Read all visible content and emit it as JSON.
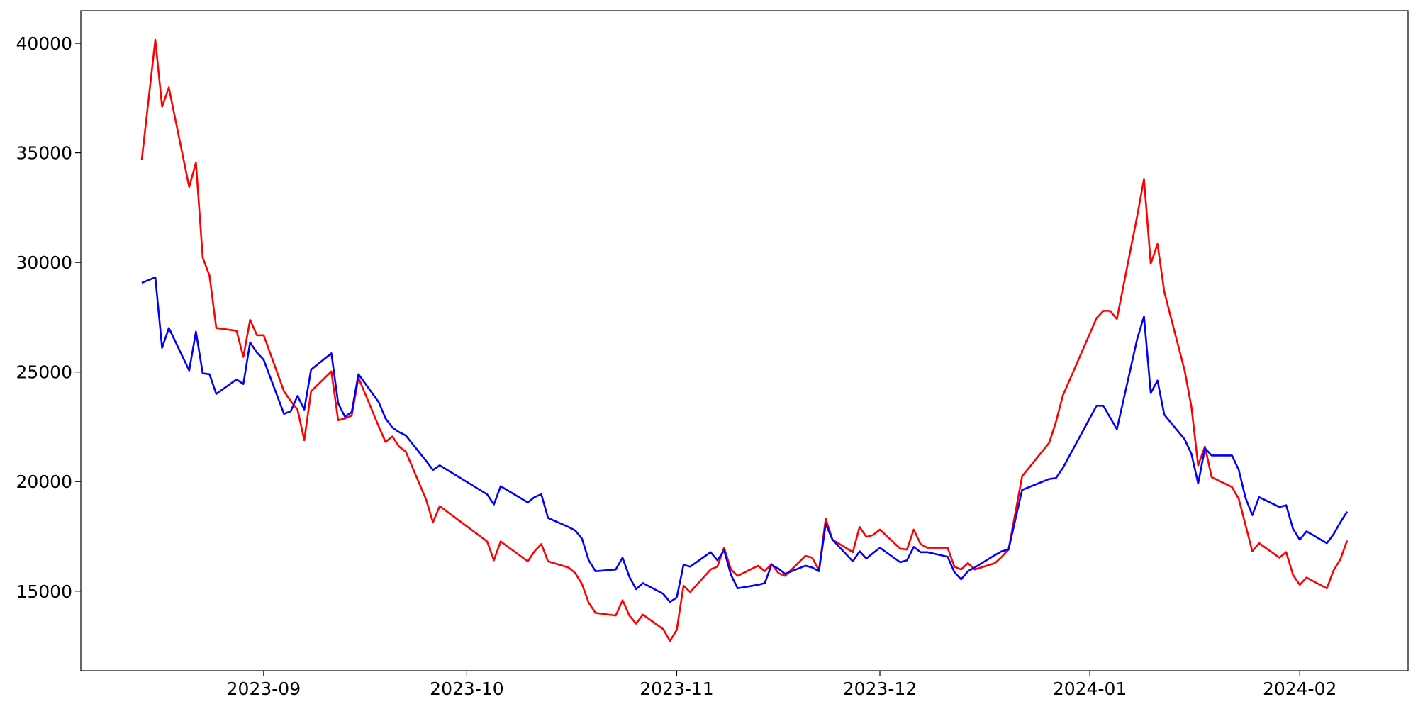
{
  "chart_data": {
    "type": "line",
    "x": [
      19583,
      19585,
      19586,
      19587,
      19590,
      19591,
      19592,
      19593,
      19594,
      19597,
      19598,
      19599,
      19600,
      19601,
      19604,
      19605,
      19606,
      19607,
      19608,
      19611,
      19612,
      19613,
      19614,
      19615,
      19618,
      19619,
      19620,
      19621,
      19622,
      19625,
      19626,
      19627,
      19634,
      19635,
      19636,
      19640,
      19641,
      19642,
      19643,
      19646,
      19647,
      19648,
      19649,
      19650,
      19653,
      19654,
      19655,
      19656,
      19657,
      19660,
      19661,
      19662,
      19663,
      19664,
      19667,
      19668,
      19669,
      19670,
      19671,
      19674,
      19675,
      19676,
      19677,
      19678,
      19681,
      19682,
      19683,
      19684,
      19685,
      19688,
      19689,
      19690,
      19691,
      19692,
      19695,
      19696,
      19697,
      19698,
      19699,
      19702,
      19703,
      19704,
      19705,
      19706,
      19709,
      19710,
      19711,
      19713,
      19717,
      19718,
      19719,
      19724,
      19725,
      19726,
      19727,
      19730,
      19731,
      19732,
      19733,
      19734,
      19737,
      19738,
      19739,
      19740,
      19741,
      19744,
      19745,
      19746,
      19747,
      19748,
      19751,
      19752,
      19753,
      19754,
      19755,
      19758,
      19759,
      19760,
      19761
    ],
    "series": [
      {
        "color": "red",
        "values": [
          34680,
          40165,
          37110,
          37980,
          33440,
          34555,
          30220,
          29400,
          27010,
          26880,
          25690,
          27380,
          26680,
          26680,
          24120,
          23670,
          23290,
          21890,
          24120,
          25030,
          22800,
          22880,
          23010,
          24740,
          22510,
          21810,
          22060,
          21600,
          21360,
          19170,
          18140,
          18880,
          17270,
          16410,
          17270,
          16360,
          16820,
          17150,
          16360,
          16080,
          15830,
          15330,
          14470,
          14010,
          13890,
          14590,
          13890,
          13520,
          13930,
          13270,
          12730,
          13230,
          15250,
          14960,
          15990,
          16120,
          16980,
          15990,
          15700,
          16160,
          15910,
          16240,
          15830,
          15700,
          16610,
          16530,
          15950,
          18300,
          17350,
          16780,
          17930,
          17480,
          17560,
          17810,
          16940,
          16900,
          17810,
          17150,
          16980,
          16980,
          16120,
          15990,
          16280,
          15990,
          16280,
          16570,
          16900,
          20240,
          21770,
          22720,
          23910,
          27460,
          27790,
          27790,
          27420,
          32120,
          33810,
          29940,
          30840,
          28660,
          25070,
          23420,
          20740,
          21600,
          20200,
          19750,
          19210,
          18010,
          16820,
          17190,
          16530,
          16780,
          15750,
          15290,
          15620,
          15130,
          15950,
          16450,
          17310
        ]
      },
      {
        "color": "blue",
        "values": [
          29070,
          29320,
          26100,
          27010,
          25070,
          26840,
          24940,
          24900,
          24000,
          24660,
          24450,
          26350,
          25890,
          25560,
          23090,
          23210,
          23910,
          23290,
          25110,
          25850,
          23580,
          22960,
          23170,
          24900,
          23620,
          22880,
          22470,
          22260,
          22100,
          20940,
          20530,
          20740,
          19420,
          18960,
          19790,
          19050,
          19290,
          19420,
          18340,
          17930,
          17770,
          17400,
          16410,
          15910,
          15990,
          16530,
          15660,
          15090,
          15370,
          14880,
          14510,
          14710,
          16200,
          16120,
          16780,
          16410,
          16860,
          15750,
          15130,
          15290,
          15370,
          16200,
          16030,
          15790,
          16160,
          16080,
          15910,
          18060,
          17350,
          16360,
          16820,
          16490,
          16740,
          16980,
          16320,
          16410,
          17020,
          16780,
          16780,
          16570,
          15870,
          15540,
          15910,
          16080,
          16650,
          16820,
          16900,
          19620,
          20120,
          20160,
          20610,
          23460,
          23460,
          22920,
          22390,
          26510,
          27540,
          24040,
          24610,
          23050,
          21930,
          21270,
          19910,
          21520,
          21190,
          21190,
          20530,
          19250,
          18470,
          19290,
          18840,
          18920,
          17850,
          17350,
          17730,
          17190,
          17600,
          18140,
          18630
        ]
      }
    ],
    "xlim": [
      19574,
      19770
    ],
    "xticks": [
      {
        "value": 19601,
        "label": "2023-09"
      },
      {
        "value": 19631,
        "label": "2023-10"
      },
      {
        "value": 19662,
        "label": "2023-11"
      },
      {
        "value": 19692,
        "label": "2023-12"
      },
      {
        "value": 19723,
        "label": "2024-01"
      },
      {
        "value": 19754,
        "label": "2024-02"
      }
    ],
    "ylim": [
      11370,
      41490
    ],
    "yticks": [
      15000,
      20000,
      25000,
      30000,
      35000,
      40000
    ]
  }
}
